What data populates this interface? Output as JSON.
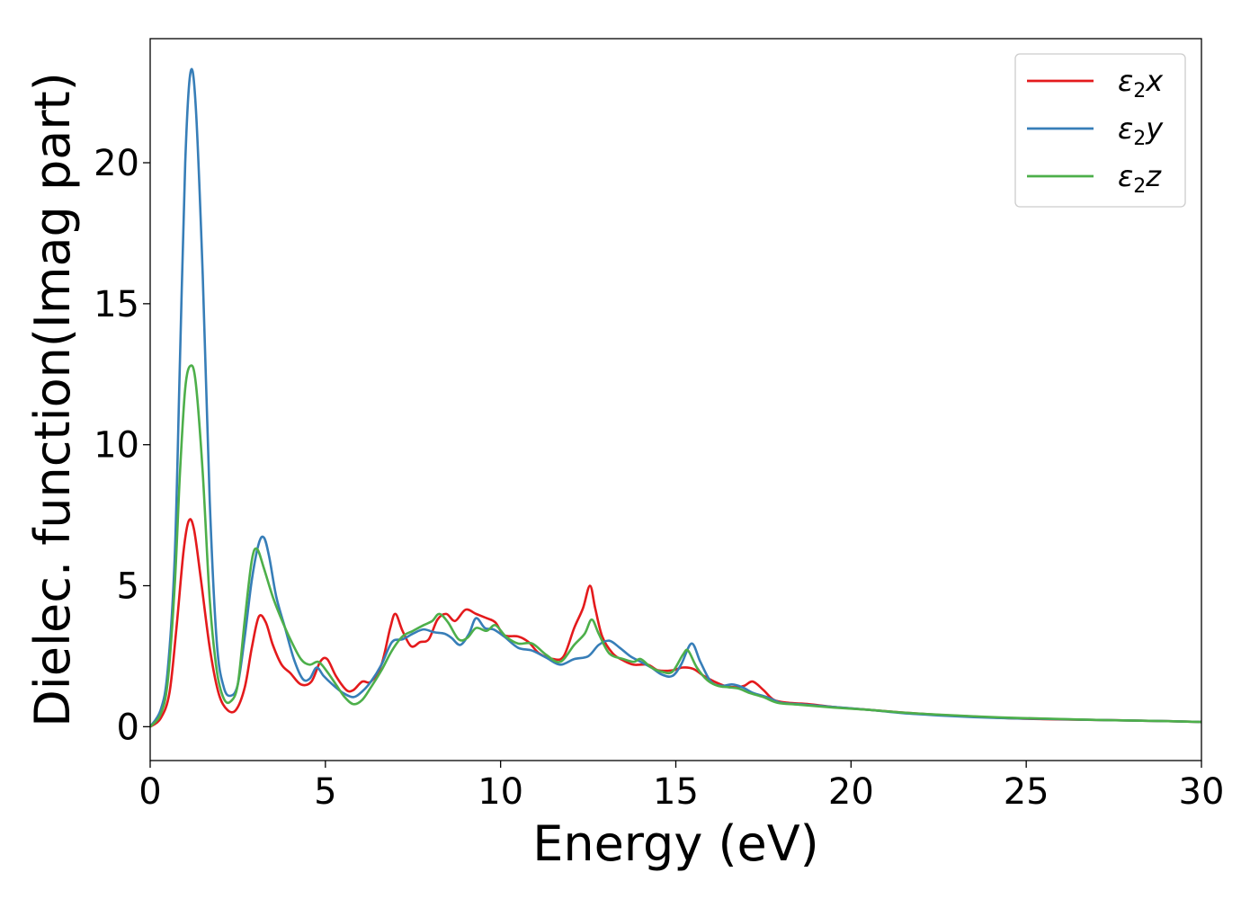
{
  "chart_data": {
    "type": "line",
    "xlabel": "Energy (eV)",
    "ylabel": "Dielec. function(Imag part)",
    "xlim": [
      0,
      30
    ],
    "ylim": [
      -1.2,
      24.4
    ],
    "xticks": [
      0,
      5,
      10,
      15,
      20,
      25,
      30
    ],
    "yticks": [
      0,
      5,
      10,
      15,
      20
    ],
    "grid": false,
    "legend_position": "top-right",
    "series": [
      {
        "name": "ε2x",
        "legend": {
          "base": "ε",
          "sub": "2",
          "var": "x"
        },
        "color": "#e41a1c",
        "points": [
          [
            0,
            0
          ],
          [
            0.3,
            0.3
          ],
          [
            0.55,
            1.2
          ],
          [
            0.75,
            3.5
          ],
          [
            0.95,
            6.2
          ],
          [
            1.1,
            7.3
          ],
          [
            1.25,
            7.0
          ],
          [
            1.45,
            5.2
          ],
          [
            1.7,
            2.8
          ],
          [
            1.95,
            1.2
          ],
          [
            2.2,
            0.6
          ],
          [
            2.45,
            0.6
          ],
          [
            2.7,
            1.4
          ],
          [
            2.9,
            2.8
          ],
          [
            3.1,
            3.9
          ],
          [
            3.3,
            3.7
          ],
          [
            3.5,
            2.9
          ],
          [
            3.75,
            2.2
          ],
          [
            4.0,
            1.9
          ],
          [
            4.3,
            1.5
          ],
          [
            4.6,
            1.6
          ],
          [
            4.85,
            2.3
          ],
          [
            5.05,
            2.4
          ],
          [
            5.3,
            1.8
          ],
          [
            5.6,
            1.3
          ],
          [
            5.8,
            1.3
          ],
          [
            6.05,
            1.6
          ],
          [
            6.3,
            1.6
          ],
          [
            6.6,
            2.2
          ],
          [
            6.85,
            3.5
          ],
          [
            7.0,
            4.0
          ],
          [
            7.2,
            3.4
          ],
          [
            7.45,
            2.85
          ],
          [
            7.7,
            3.0
          ],
          [
            7.95,
            3.1
          ],
          [
            8.2,
            3.8
          ],
          [
            8.45,
            4.0
          ],
          [
            8.7,
            3.75
          ],
          [
            9.0,
            4.15
          ],
          [
            9.3,
            4.0
          ],
          [
            9.6,
            3.85
          ],
          [
            9.85,
            3.7
          ],
          [
            10.1,
            3.25
          ],
          [
            10.5,
            3.2
          ],
          [
            10.8,
            3.0
          ],
          [
            11.1,
            2.6
          ],
          [
            11.5,
            2.4
          ],
          [
            11.8,
            2.5
          ],
          [
            12.1,
            3.5
          ],
          [
            12.35,
            4.2
          ],
          [
            12.55,
            5.0
          ],
          [
            12.7,
            4.2
          ],
          [
            12.9,
            3.2
          ],
          [
            13.2,
            2.6
          ],
          [
            13.5,
            2.35
          ],
          [
            13.8,
            2.2
          ],
          [
            14.2,
            2.2
          ],
          [
            14.5,
            2.0
          ],
          [
            14.9,
            2.0
          ],
          [
            15.2,
            2.1
          ],
          [
            15.5,
            2.05
          ],
          [
            15.8,
            1.8
          ],
          [
            16.1,
            1.6
          ],
          [
            16.4,
            1.45
          ],
          [
            16.7,
            1.4
          ],
          [
            16.95,
            1.45
          ],
          [
            17.2,
            1.6
          ],
          [
            17.5,
            1.3
          ],
          [
            17.8,
            0.95
          ],
          [
            18.2,
            0.85
          ],
          [
            18.8,
            0.8
          ],
          [
            19.5,
            0.7
          ],
          [
            20.5,
            0.6
          ],
          [
            21.5,
            0.5
          ],
          [
            22.5,
            0.42
          ],
          [
            23.5,
            0.36
          ],
          [
            24.5,
            0.3
          ],
          [
            25.5,
            0.27
          ],
          [
            27,
            0.24
          ],
          [
            28.5,
            0.21
          ],
          [
            30,
            0.17
          ]
        ]
      },
      {
        "name": "ε2y",
        "legend": {
          "base": "ε",
          "sub": "2",
          "var": "y"
        },
        "color": "#377eb8",
        "points": [
          [
            0,
            0
          ],
          [
            0.3,
            0.6
          ],
          [
            0.5,
            2.0
          ],
          [
            0.7,
            6.0
          ],
          [
            0.85,
            13.0
          ],
          [
            1.0,
            20.0
          ],
          [
            1.15,
            23.2
          ],
          [
            1.3,
            22.0
          ],
          [
            1.5,
            16.0
          ],
          [
            1.7,
            8.0
          ],
          [
            1.9,
            3.0
          ],
          [
            2.1,
            1.4
          ],
          [
            2.3,
            1.1
          ],
          [
            2.5,
            1.5
          ],
          [
            2.7,
            3.2
          ],
          [
            2.9,
            5.2
          ],
          [
            3.1,
            6.5
          ],
          [
            3.25,
            6.7
          ],
          [
            3.4,
            6.0
          ],
          [
            3.6,
            4.6
          ],
          [
            3.85,
            3.5
          ],
          [
            4.1,
            2.4
          ],
          [
            4.35,
            1.7
          ],
          [
            4.55,
            1.7
          ],
          [
            4.75,
            2.1
          ],
          [
            4.95,
            1.8
          ],
          [
            5.2,
            1.5
          ],
          [
            5.5,
            1.2
          ],
          [
            5.8,
            1.05
          ],
          [
            6.05,
            1.25
          ],
          [
            6.3,
            1.6
          ],
          [
            6.6,
            2.2
          ],
          [
            6.9,
            3.0
          ],
          [
            7.2,
            3.1
          ],
          [
            7.5,
            3.3
          ],
          [
            7.8,
            3.45
          ],
          [
            8.1,
            3.35
          ],
          [
            8.4,
            3.3
          ],
          [
            8.6,
            3.15
          ],
          [
            8.85,
            2.9
          ],
          [
            9.1,
            3.3
          ],
          [
            9.3,
            3.85
          ],
          [
            9.55,
            3.5
          ],
          [
            9.8,
            3.45
          ],
          [
            10.1,
            3.2
          ],
          [
            10.5,
            2.8
          ],
          [
            10.9,
            2.7
          ],
          [
            11.3,
            2.45
          ],
          [
            11.7,
            2.2
          ],
          [
            12.1,
            2.4
          ],
          [
            12.5,
            2.5
          ],
          [
            12.8,
            2.9
          ],
          [
            13.1,
            3.05
          ],
          [
            13.4,
            2.8
          ],
          [
            13.7,
            2.5
          ],
          [
            14.0,
            2.3
          ],
          [
            14.3,
            2.1
          ],
          [
            14.6,
            1.85
          ],
          [
            14.9,
            1.8
          ],
          [
            15.15,
            2.2
          ],
          [
            15.45,
            2.95
          ],
          [
            15.7,
            2.3
          ],
          [
            16.0,
            1.6
          ],
          [
            16.3,
            1.45
          ],
          [
            16.6,
            1.5
          ],
          [
            16.9,
            1.4
          ],
          [
            17.2,
            1.2
          ],
          [
            17.6,
            1.05
          ],
          [
            18.0,
            0.85
          ],
          [
            18.5,
            0.8
          ],
          [
            19.5,
            0.7
          ],
          [
            20.5,
            0.6
          ],
          [
            21.5,
            0.48
          ],
          [
            22.5,
            0.4
          ],
          [
            23.5,
            0.34
          ],
          [
            24.5,
            0.3
          ],
          [
            25.5,
            0.28
          ],
          [
            27,
            0.24
          ],
          [
            28.5,
            0.21
          ],
          [
            30,
            0.17
          ]
        ]
      },
      {
        "name": "ε2z",
        "legend": {
          "base": "ε",
          "sub": "2",
          "var": "z"
        },
        "color": "#4daf4a",
        "points": [
          [
            0,
            0
          ],
          [
            0.3,
            0.45
          ],
          [
            0.5,
            1.6
          ],
          [
            0.7,
            5.0
          ],
          [
            0.85,
            9.0
          ],
          [
            1.0,
            12.0
          ],
          [
            1.15,
            12.8
          ],
          [
            1.3,
            12.2
          ],
          [
            1.5,
            9.0
          ],
          [
            1.7,
            4.5
          ],
          [
            1.9,
            2.0
          ],
          [
            2.1,
            1.0
          ],
          [
            2.3,
            0.9
          ],
          [
            2.5,
            1.5
          ],
          [
            2.7,
            3.8
          ],
          [
            2.9,
            5.9
          ],
          [
            3.05,
            6.3
          ],
          [
            3.25,
            5.6
          ],
          [
            3.5,
            4.6
          ],
          [
            3.75,
            3.8
          ],
          [
            4.0,
            3.1
          ],
          [
            4.3,
            2.4
          ],
          [
            4.55,
            2.2
          ],
          [
            4.8,
            2.3
          ],
          [
            5.05,
            1.95
          ],
          [
            5.3,
            1.5
          ],
          [
            5.55,
            1.05
          ],
          [
            5.8,
            0.8
          ],
          [
            6.05,
            0.95
          ],
          [
            6.3,
            1.4
          ],
          [
            6.6,
            2.0
          ],
          [
            6.9,
            2.7
          ],
          [
            7.2,
            3.2
          ],
          [
            7.5,
            3.4
          ],
          [
            7.8,
            3.6
          ],
          [
            8.05,
            3.75
          ],
          [
            8.25,
            4.0
          ],
          [
            8.5,
            3.7
          ],
          [
            8.8,
            3.1
          ],
          [
            9.05,
            3.15
          ],
          [
            9.3,
            3.5
          ],
          [
            9.6,
            3.4
          ],
          [
            9.85,
            3.6
          ],
          [
            10.15,
            3.2
          ],
          [
            10.5,
            2.95
          ],
          [
            10.9,
            2.95
          ],
          [
            11.3,
            2.55
          ],
          [
            11.7,
            2.3
          ],
          [
            12.1,
            2.9
          ],
          [
            12.4,
            3.3
          ],
          [
            12.6,
            3.8
          ],
          [
            12.8,
            3.3
          ],
          [
            13.1,
            2.6
          ],
          [
            13.5,
            2.4
          ],
          [
            13.8,
            2.3
          ],
          [
            14.0,
            2.4
          ],
          [
            14.3,
            2.1
          ],
          [
            14.6,
            1.95
          ],
          [
            14.9,
            1.95
          ],
          [
            15.2,
            2.55
          ],
          [
            15.35,
            2.7
          ],
          [
            15.6,
            2.1
          ],
          [
            15.9,
            1.65
          ],
          [
            16.2,
            1.45
          ],
          [
            16.5,
            1.4
          ],
          [
            16.8,
            1.35
          ],
          [
            17.1,
            1.2
          ],
          [
            17.5,
            1.05
          ],
          [
            17.9,
            0.85
          ],
          [
            18.5,
            0.78
          ],
          [
            19.5,
            0.68
          ],
          [
            20.5,
            0.6
          ],
          [
            21.5,
            0.5
          ],
          [
            22.5,
            0.43
          ],
          [
            23.5,
            0.37
          ],
          [
            24.5,
            0.32
          ],
          [
            25.5,
            0.29
          ],
          [
            27,
            0.24
          ],
          [
            28.5,
            0.21
          ],
          [
            30,
            0.17
          ]
        ]
      }
    ]
  }
}
